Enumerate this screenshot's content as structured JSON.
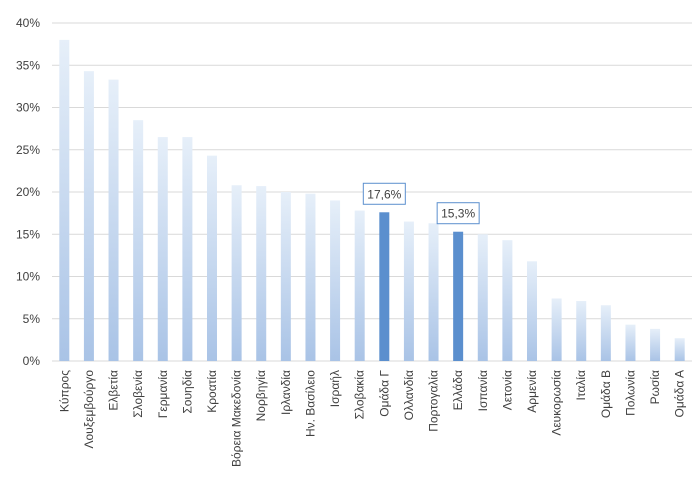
{
  "chart_data": {
    "type": "bar",
    "categories": [
      "Κύπρος",
      "Λουξεμβούργο",
      "Ελβετία",
      "Σλοβενία",
      "Γερμανία",
      "Σουηδία",
      "Κροατία",
      "Βόρεια Μακεδονία",
      "Νορβηγία",
      "Ιρλανδία",
      "Ην. Βασίλειο",
      "Ισραήλ",
      "Σλοβακία",
      "Ομάδα Γ",
      "Ολλανδία",
      "Πορτογαλία",
      "Ελλάδα",
      "Ισπανία",
      "Λετονία",
      "Αρμενία",
      "Λευκορωσία",
      "Ιταλία",
      "Ομάδα Β",
      "Πολωνία",
      "Ρωσία",
      "Ομάδα Α"
    ],
    "values": [
      38.0,
      34.3,
      33.3,
      28.5,
      26.5,
      26.5,
      24.3,
      20.8,
      20.7,
      20.0,
      19.8,
      19.0,
      17.8,
      17.6,
      16.5,
      16.3,
      15.3,
      15.0,
      14.3,
      11.8,
      7.4,
      7.1,
      6.6,
      4.3,
      3.8,
      2.7
    ],
    "highlighted": [
      "Ομάδα Γ",
      "Ελλάδα"
    ],
    "data_labels": [
      {
        "category": "Ομάδα Γ",
        "text": "17,6%"
      },
      {
        "category": "Ελλάδα",
        "text": "15,3%"
      }
    ],
    "y_ticks": [
      "0%",
      "5%",
      "10%",
      "15%",
      "20%",
      "25%",
      "30%",
      "35%",
      "40%"
    ],
    "ylim": [
      0,
      40
    ],
    "grid": true,
    "colors": {
      "bar_gradient_top": "#e6eff9",
      "bar_gradient_bottom": "#a9c3e6",
      "highlight": "#5b8fce",
      "gridline": "#d9d9d9",
      "label_border": "#5b8fce"
    },
    "title": "",
    "xlabel": "",
    "ylabel": ""
  }
}
